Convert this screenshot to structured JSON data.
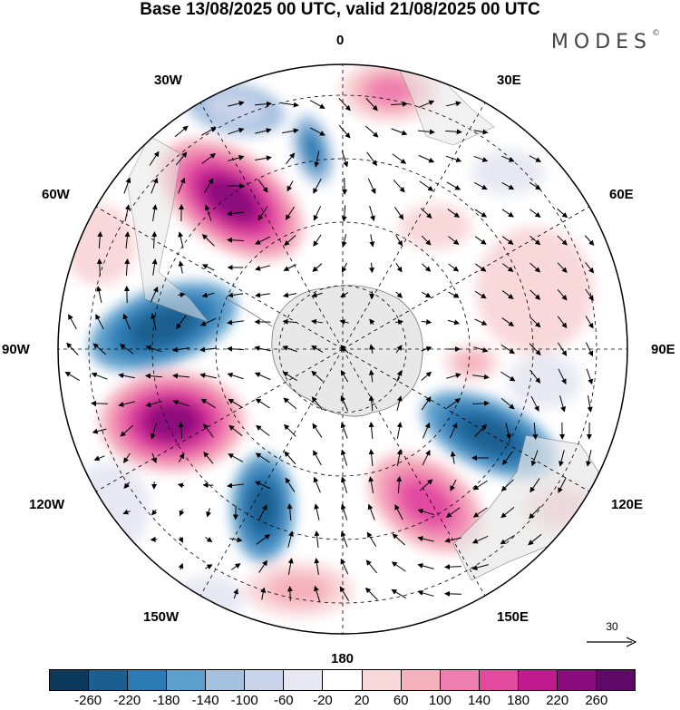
{
  "header": {
    "title": "Base 13/08/2025 00 UTC, valid 21/08/2025 00 UTC",
    "brand": "MODES",
    "brand_mark": "©"
  },
  "map": {
    "longitude_labels": {
      "l0": "0",
      "l30e": "30E",
      "l60e": "60E",
      "l90e": "90E",
      "l120e": "120E",
      "l150e": "150E",
      "l180": "180",
      "l150w": "150W",
      "l120w": "120W",
      "l90w": "90W",
      "l60w": "60W",
      "l30w": "30W"
    },
    "vector_scale": "30"
  },
  "colorbar": {
    "ticks": [
      "-260",
      "-220",
      "-180",
      "-140",
      "-100",
      "-60",
      "-20",
      "20",
      "60",
      "100",
      "140",
      "180",
      "220",
      "260"
    ],
    "colors": [
      "#0d3a5c",
      "#1a5f8f",
      "#2a7ab4",
      "#5d9fcc",
      "#a5c1e0",
      "#c9d3ea",
      "#e7e8f3",
      "#ffffff",
      "#f9d8da",
      "#f5b2bd",
      "#ef7fb0",
      "#e24aa0",
      "#c01a8e",
      "#8b0c7d",
      "#5e0867"
    ]
  }
}
